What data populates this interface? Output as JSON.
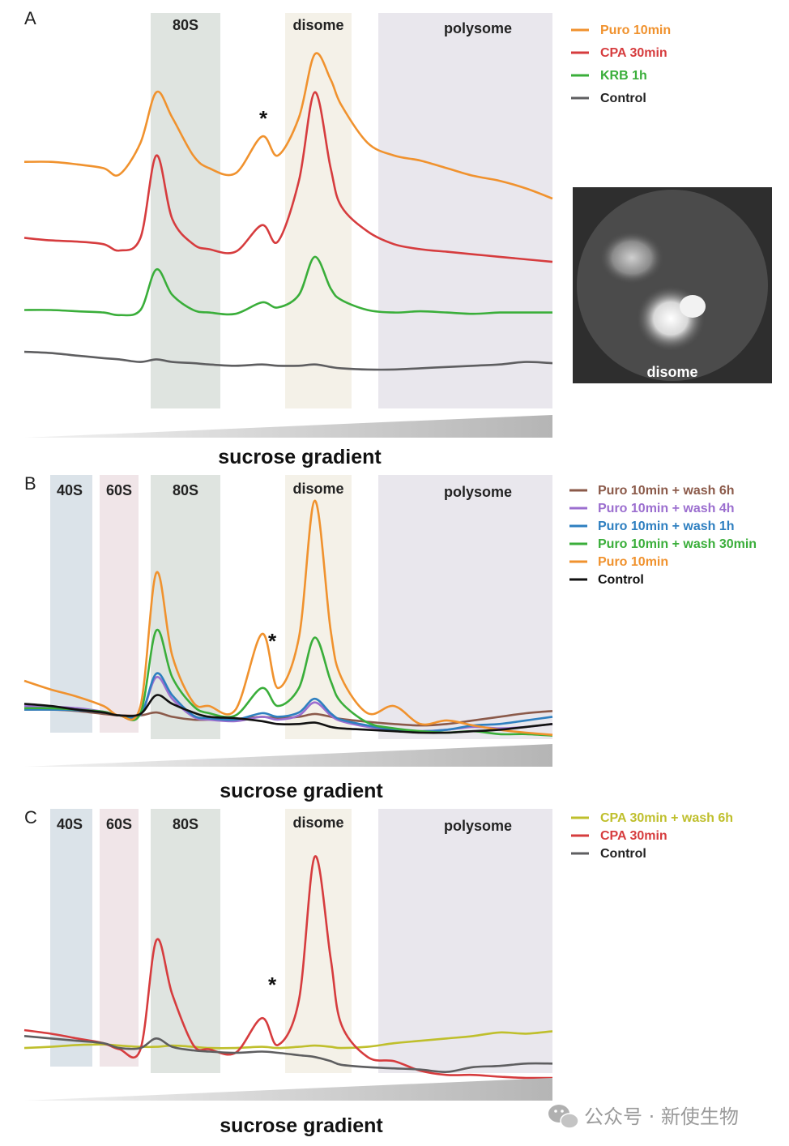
{
  "chart_data": [
    {
      "type": "line",
      "panel": "A",
      "x_label": "sucrose gradient",
      "x": [
        0,
        5,
        10,
        15,
        18,
        22,
        25,
        28,
        32,
        35,
        40,
        45,
        48,
        52,
        55,
        58,
        60,
        65,
        70,
        75,
        80,
        85,
        90,
        95,
        100
      ],
      "regions": [
        {
          "label": "80S",
          "range": [
            24,
            38
          ],
          "color": "#dfe4e0"
        },
        {
          "label": "disome",
          "range": [
            50,
            62
          ],
          "color": "#f4f1e8"
        },
        {
          "label": "polysome",
          "range": [
            67,
            100
          ],
          "color": "#e9e7ed"
        }
      ],
      "annotations": [
        {
          "text": "*",
          "x": 45
        }
      ],
      "series": [
        {
          "name": "Puro 10min",
          "color": "#f0922e",
          "values": [
            2.05,
            2.05,
            2.03,
            2.0,
            1.95,
            2.2,
            2.6,
            2.4,
            2.1,
            2.0,
            1.96,
            2.25,
            2.1,
            2.4,
            2.9,
            2.7,
            2.5,
            2.2,
            2.1,
            2.06,
            2.0,
            1.94,
            1.9,
            1.84,
            1.76
          ]
        },
        {
          "name": "CPA  30min",
          "color": "#d63c3e",
          "values": [
            1.45,
            1.43,
            1.42,
            1.4,
            1.35,
            1.45,
            2.1,
            1.6,
            1.4,
            1.36,
            1.34,
            1.55,
            1.42,
            1.9,
            2.6,
            2.0,
            1.7,
            1.5,
            1.4,
            1.36,
            1.34,
            1.32,
            1.3,
            1.28,
            1.26
          ]
        },
        {
          "name": "KRB  1h",
          "color": "#3aae3a",
          "values": [
            0.88,
            0.88,
            0.87,
            0.86,
            0.84,
            0.88,
            1.2,
            1.0,
            0.88,
            0.86,
            0.85,
            0.94,
            0.9,
            1.0,
            1.3,
            1.05,
            0.96,
            0.88,
            0.86,
            0.87,
            0.86,
            0.85,
            0.86,
            0.86,
            0.86
          ]
        },
        {
          "name": "Control",
          "color": "#5e5e60",
          "values": [
            0.55,
            0.54,
            0.52,
            0.5,
            0.49,
            0.47,
            0.49,
            0.47,
            0.46,
            0.45,
            0.44,
            0.45,
            0.44,
            0.44,
            0.45,
            0.43,
            0.42,
            0.41,
            0.41,
            0.42,
            0.43,
            0.44,
            0.45,
            0.47,
            0.46
          ]
        }
      ],
      "ylim": [
        0,
        3.2
      ]
    },
    {
      "type": "line",
      "panel": "B",
      "x_label": "sucrose gradient",
      "x": [
        0,
        5,
        10,
        15,
        18,
        22,
        25,
        28,
        32,
        35,
        40,
        45,
        48,
        52,
        55,
        58,
        60,
        65,
        70,
        75,
        80,
        85,
        90,
        95,
        100
      ],
      "regions": [
        {
          "label": "40S",
          "range": [
            5,
            13
          ],
          "color": "#dbe3e9"
        },
        {
          "label": "60S",
          "range": [
            14.5,
            22
          ],
          "color": "#f0e5e8"
        },
        {
          "label": "80S",
          "range": [
            24,
            38
          ],
          "color": "#dfe4e0"
        },
        {
          "label": "disome",
          "range": [
            50,
            62
          ],
          "color": "#f4f1e8"
        },
        {
          "label": "polysome",
          "range": [
            67,
            100
          ],
          "color": "#e9e7ed"
        }
      ],
      "annotations": [
        {
          "text": "*",
          "x": 47
        }
      ],
      "series": [
        {
          "name": "Puro 10min + wash 6h",
          "color": "#8b5a4a",
          "values": [
            0.5,
            0.5,
            0.48,
            0.44,
            0.42,
            0.42,
            0.46,
            0.4,
            0.36,
            0.36,
            0.37,
            0.4,
            0.38,
            0.4,
            0.44,
            0.4,
            0.37,
            0.33,
            0.3,
            0.28,
            0.3,
            0.35,
            0.4,
            0.45,
            0.48
          ]
        },
        {
          "name": "Puro 10min + wash 4h",
          "color": "#9b6ecf",
          "values": [
            0.55,
            0.54,
            0.52,
            0.47,
            0.42,
            0.43,
            0.95,
            0.65,
            0.4,
            0.36,
            0.34,
            0.4,
            0.36,
            0.42,
            0.6,
            0.42,
            0.34,
            0.26,
            0.22,
            0.2,
            0.22,
            0.26,
            0.24,
            0.26,
            0.3
          ]
        },
        {
          "name": "Puro 10min + wash 1h",
          "color": "#2e7fc0",
          "values": [
            0.5,
            0.5,
            0.49,
            0.46,
            0.42,
            0.43,
            1.0,
            0.7,
            0.42,
            0.38,
            0.36,
            0.45,
            0.4,
            0.46,
            0.65,
            0.45,
            0.36,
            0.28,
            0.22,
            0.2,
            0.22,
            0.28,
            0.3,
            0.35,
            0.4
          ]
        },
        {
          "name": "Puro 10min + wash 30min",
          "color": "#3aae3a",
          "values": [
            0.52,
            0.52,
            0.5,
            0.47,
            0.42,
            0.45,
            1.6,
            0.95,
            0.55,
            0.45,
            0.42,
            0.8,
            0.55,
            0.8,
            1.5,
            0.9,
            0.6,
            0.32,
            0.24,
            0.2,
            0.18,
            0.2,
            0.16,
            0.16,
            0.14
          ]
        },
        {
          "name": "Puro 10min",
          "color": "#f0922e",
          "values": [
            0.9,
            0.78,
            0.68,
            0.55,
            0.42,
            0.55,
            2.4,
            1.25,
            0.6,
            0.55,
            0.5,
            1.55,
            0.8,
            1.5,
            3.4,
            1.6,
            0.95,
            0.45,
            0.55,
            0.3,
            0.35,
            0.28,
            0.22,
            0.18,
            0.15
          ]
        },
        {
          "name": "Control",
          "color": "#111111",
          "values": [
            0.58,
            0.55,
            0.5,
            0.46,
            0.42,
            0.44,
            0.7,
            0.58,
            0.46,
            0.4,
            0.38,
            0.34,
            0.3,
            0.3,
            0.32,
            0.26,
            0.24,
            0.22,
            0.2,
            0.18,
            0.18,
            0.2,
            0.22,
            0.26,
            0.3
          ]
        }
      ],
      "ylim": [
        0,
        3.6
      ]
    },
    {
      "type": "line",
      "panel": "C",
      "x_label": "sucrose gradient",
      "x": [
        0,
        5,
        10,
        15,
        18,
        22,
        25,
        28,
        32,
        35,
        40,
        45,
        48,
        52,
        55,
        58,
        60,
        65,
        70,
        75,
        80,
        85,
        90,
        95,
        100
      ],
      "regions": [
        {
          "label": "40S",
          "range": [
            5,
            13
          ],
          "color": "#dbe3e9"
        },
        {
          "label": "60S",
          "range": [
            14.5,
            22
          ],
          "color": "#f0e5e8"
        },
        {
          "label": "80S",
          "range": [
            24,
            38
          ],
          "color": "#dfe4e0"
        },
        {
          "label": "disome",
          "range": [
            50,
            62
          ],
          "color": "#f4f1e8"
        },
        {
          "label": "polysome",
          "range": [
            67,
            100
          ],
          "color": "#e9e7ed"
        }
      ],
      "annotations": [
        {
          "text": "*",
          "x": 47
        }
      ],
      "series": [
        {
          "name": "CPA  30min + wash 6h",
          "color": "#bfbf2c",
          "values": [
            0.5,
            0.52,
            0.55,
            0.56,
            0.54,
            0.52,
            0.52,
            0.54,
            0.52,
            0.5,
            0.5,
            0.52,
            0.5,
            0.52,
            0.54,
            0.52,
            0.5,
            0.52,
            0.58,
            0.62,
            0.66,
            0.7,
            0.76,
            0.74,
            0.78
          ]
        },
        {
          "name": "CPA  30min",
          "color": "#d63c3e",
          "values": [
            0.8,
            0.74,
            0.66,
            0.58,
            0.48,
            0.48,
            2.3,
            1.4,
            0.55,
            0.48,
            0.42,
            1.0,
            0.55,
            1.3,
            3.7,
            2.0,
            0.9,
            0.35,
            0.28,
            0.12,
            0.05,
            0.05,
            0.02,
            0.0,
            0.0
          ]
        },
        {
          "name": "Control",
          "color": "#5e5e60",
          "values": [
            0.7,
            0.66,
            0.62,
            0.58,
            0.5,
            0.5,
            0.66,
            0.52,
            0.46,
            0.44,
            0.42,
            0.44,
            0.42,
            0.38,
            0.35,
            0.28,
            0.22,
            0.18,
            0.16,
            0.14,
            0.1,
            0.18,
            0.2,
            0.24,
            0.24
          ]
        }
      ],
      "ylim": [
        0,
        4.2
      ]
    }
  ],
  "panels": {
    "A": {
      "label": "A",
      "regions": {
        "r80s": "80S",
        "disome": "disome",
        "polysome": "polysome"
      },
      "star": "*",
      "gradient_label": "sucrose gradient",
      "legend": [
        "Puro 10min",
        "CPA  30min",
        "KRB  1h",
        "Control"
      ],
      "inset_label": "disome"
    },
    "B": {
      "label": "B",
      "regions": {
        "r40s": "40S",
        "r60s": "60S",
        "r80s": "80S",
        "disome": "disome",
        "polysome": "polysome"
      },
      "star": "*",
      "gradient_label": "sucrose gradient",
      "legend": [
        "Puro 10min + wash 6h",
        "Puro 10min + wash 4h",
        "Puro 10min + wash 1h",
        "Puro 10min + wash 30min",
        "Puro 10min",
        "Control"
      ]
    },
    "C": {
      "label": "C",
      "regions": {
        "r40s": "40S",
        "r60s": "60S",
        "r80s": "80S",
        "disome": "disome",
        "polysome": "polysome"
      },
      "star": "*",
      "gradient_label": "sucrose gradient",
      "legend": [
        "CPA  30min + wash 6h",
        "CPA  30min",
        "Control"
      ]
    }
  },
  "watermark": {
    "text": "公众号 · 新使生物",
    "icon": "wechat-icon"
  },
  "colors": {
    "region_40s": "#dbe3e9",
    "region_60s": "#f0e5e8",
    "region_80s": "#dfe4e0",
    "region_disome": "#f4f1e8",
    "region_polysome": "#e9e7ed",
    "wedge": "#b9b9b9"
  }
}
